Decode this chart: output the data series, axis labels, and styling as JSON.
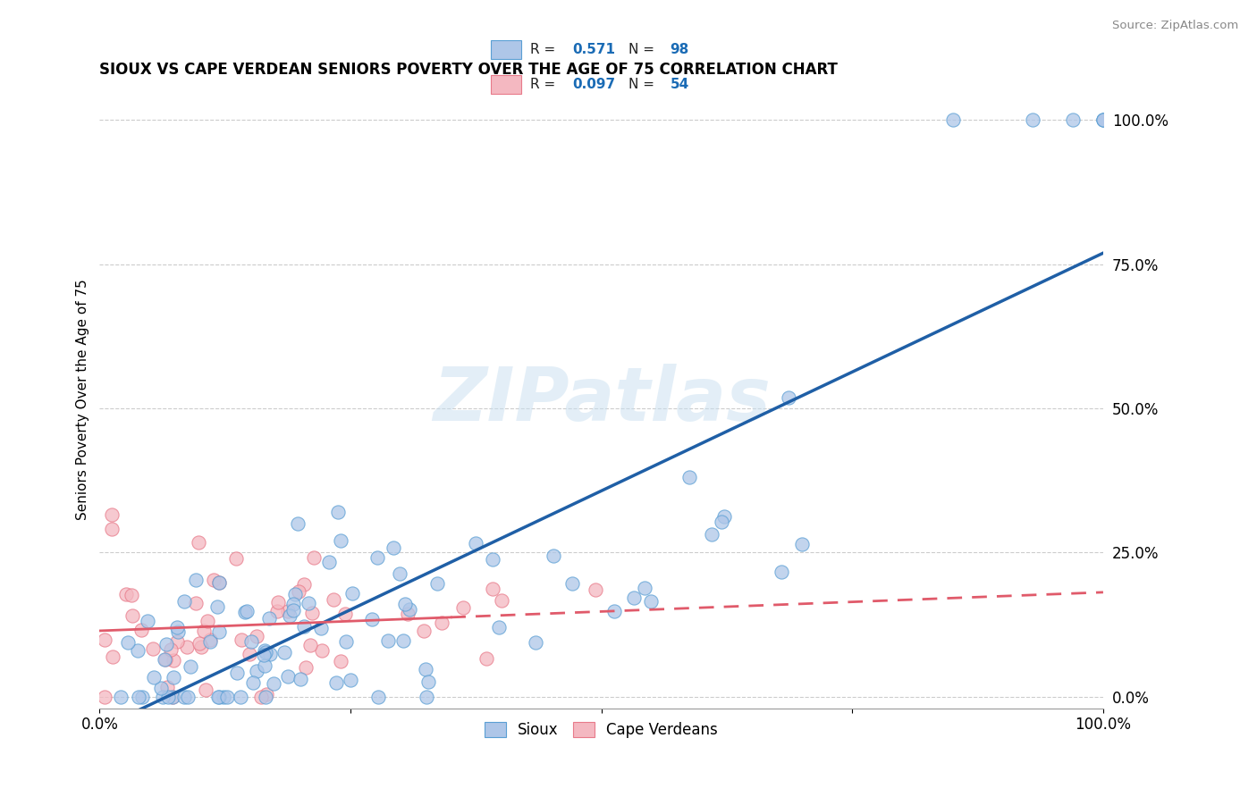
{
  "title": "SIOUX VS CAPE VERDEAN SENIORS POVERTY OVER THE AGE OF 75 CORRELATION CHART",
  "source": "Source: ZipAtlas.com",
  "ylabel": "Seniors Poverty Over the Age of 75",
  "sioux_R": 0.571,
  "sioux_N": 98,
  "cape_R": 0.097,
  "cape_N": 54,
  "sioux_color": "#aec6e8",
  "sioux_edge": "#5a9fd4",
  "cape_color": "#f4b8c1",
  "cape_edge": "#e87a8a",
  "trend_sioux_color": "#1f5fa6",
  "trend_cape_color": "#e05a6a",
  "background_color": "#ffffff",
  "watermark": "ZIPatlas",
  "legend_R_color": "#1a6bb5",
  "legend_N_color": "#1a6bb5"
}
